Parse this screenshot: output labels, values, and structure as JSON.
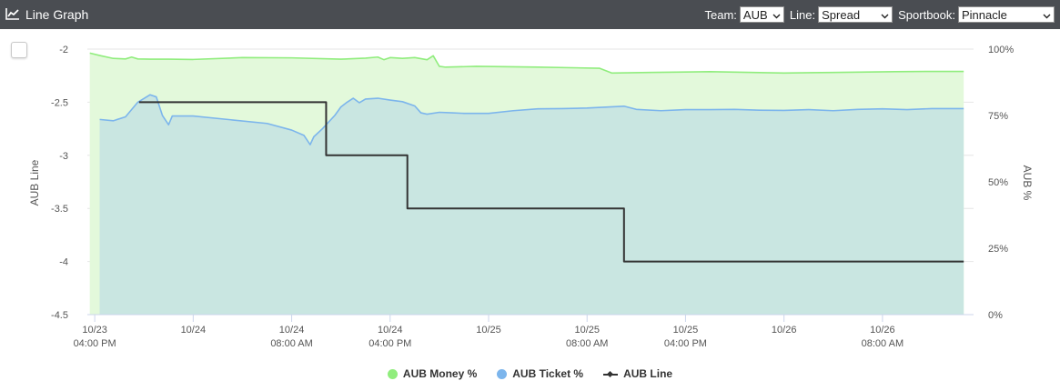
{
  "header": {
    "title": "Line Graph",
    "icon": "line-chart-icon",
    "team_label": "Team:",
    "team_value": "AUB",
    "line_label": "Line:",
    "line_value": "Spread",
    "sportsbook_label": "Sportbook:",
    "sportsbook_value": "Pinnacle"
  },
  "chart_data": {
    "type": "line",
    "ylabel_left": "AUB Line",
    "ylabel_right": "AUB %",
    "y_left_ticks": [
      "-2",
      "-2.5",
      "-3",
      "-3.5",
      "-4",
      "-4.5"
    ],
    "y_left_range": [
      -4.5,
      -2
    ],
    "y_right_ticks": [
      "100%",
      "75%",
      "50%",
      "25%",
      "0%"
    ],
    "y_right_range": [
      0,
      100
    ],
    "x_ticks": [
      {
        "top": "10/23",
        "bottom": "04:00 PM",
        "t": 0
      },
      {
        "top": "10/24",
        "bottom": "",
        "t": 8
      },
      {
        "top": "10/24",
        "bottom": "08:00 AM",
        "t": 16
      },
      {
        "top": "10/24",
        "bottom": "04:00 PM",
        "t": 24
      },
      {
        "top": "10/25",
        "bottom": "",
        "t": 32
      },
      {
        "top": "10/25",
        "bottom": "08:00 AM",
        "t": 40
      },
      {
        "top": "10/25",
        "bottom": "04:00 PM",
        "t": 48
      },
      {
        "top": "10/26",
        "bottom": "",
        "t": 56
      },
      {
        "top": "10/26",
        "bottom": "08:00 AM",
        "t": 64
      }
    ],
    "grid": true,
    "legend_position": "bottom-center",
    "series": [
      {
        "name": "AUB Money %",
        "axis": "right",
        "color": "#90ed7d",
        "fill": "#e3f9db",
        "points": [
          [
            -0.4,
            98.5
          ],
          [
            0.5,
            97.5
          ],
          [
            1.5,
            96.5
          ],
          [
            2.5,
            96.3
          ],
          [
            3,
            97
          ],
          [
            3.5,
            96.3
          ],
          [
            4.5,
            96.2
          ],
          [
            6,
            96.2
          ],
          [
            8,
            96.1
          ],
          [
            12,
            96.8
          ],
          [
            16,
            96.7
          ],
          [
            20,
            96.2
          ],
          [
            22,
            96.6
          ],
          [
            23,
            97
          ],
          [
            23.5,
            96
          ],
          [
            24,
            96.8
          ],
          [
            25,
            96.5
          ],
          [
            26,
            96.8
          ],
          [
            27,
            96
          ],
          [
            27.5,
            97.5
          ],
          [
            28,
            93.5
          ],
          [
            28.5,
            93.2
          ],
          [
            31,
            93.5
          ],
          [
            36,
            93.2
          ],
          [
            41,
            92.8
          ],
          [
            42,
            91
          ],
          [
            45,
            91.2
          ],
          [
            50,
            91.5
          ],
          [
            56,
            91
          ],
          [
            60,
            91.2
          ],
          [
            65,
            91.5
          ],
          [
            68,
            91.6
          ],
          [
            70.6,
            91.6
          ]
        ]
      },
      {
        "name": "AUB Ticket %",
        "axis": "right",
        "color": "#7cb5ec",
        "fill": "#c9e6e1",
        "points": [
          [
            0.4,
            73.5
          ],
          [
            1.5,
            73
          ],
          [
            2.5,
            74.5
          ],
          [
            3.5,
            80
          ],
          [
            4.5,
            82.8
          ],
          [
            5,
            82
          ],
          [
            5.5,
            75
          ],
          [
            6,
            71.5
          ],
          [
            6.3,
            74.8
          ],
          [
            8,
            74.8
          ],
          [
            14,
            72
          ],
          [
            16,
            69.5
          ],
          [
            17,
            67.5
          ],
          [
            17.5,
            64
          ],
          [
            17.8,
            67
          ],
          [
            18.5,
            70
          ],
          [
            19.5,
            75
          ],
          [
            20,
            78.2
          ],
          [
            20.5,
            80
          ],
          [
            21,
            81.5
          ],
          [
            21.5,
            79.8
          ],
          [
            22,
            81.2
          ],
          [
            23,
            81.5
          ],
          [
            24,
            80.8
          ],
          [
            25,
            80.2
          ],
          [
            26,
            78.6
          ],
          [
            26.5,
            76
          ],
          [
            27,
            75.5
          ],
          [
            28,
            76.2
          ],
          [
            29,
            76
          ],
          [
            30,
            75.8
          ],
          [
            32,
            75.8
          ],
          [
            34,
            76.8
          ],
          [
            36,
            77.5
          ],
          [
            38,
            77.6
          ],
          [
            40,
            77.8
          ],
          [
            43,
            78.5
          ],
          [
            44,
            77.3
          ],
          [
            46,
            76.8
          ],
          [
            48,
            77.2
          ],
          [
            50,
            77.2
          ],
          [
            52,
            77.3
          ],
          [
            54,
            77
          ],
          [
            56,
            76.9
          ],
          [
            58,
            77.2
          ],
          [
            60,
            76.8
          ],
          [
            62,
            77.3
          ],
          [
            64,
            77.5
          ],
          [
            66,
            77.2
          ],
          [
            68,
            77.6
          ],
          [
            70.6,
            77.6
          ]
        ]
      },
      {
        "name": "AUB Line",
        "axis": "left",
        "color": "#333333",
        "step": true,
        "points": [
          [
            3.6,
            -2.5
          ],
          [
            18.8,
            -2.5
          ],
          [
            18.8,
            -3
          ],
          [
            25.4,
            -3
          ],
          [
            25.4,
            -3.5
          ],
          [
            43,
            -3.5
          ],
          [
            43,
            -4
          ],
          [
            70.6,
            -4
          ]
        ]
      }
    ]
  }
}
